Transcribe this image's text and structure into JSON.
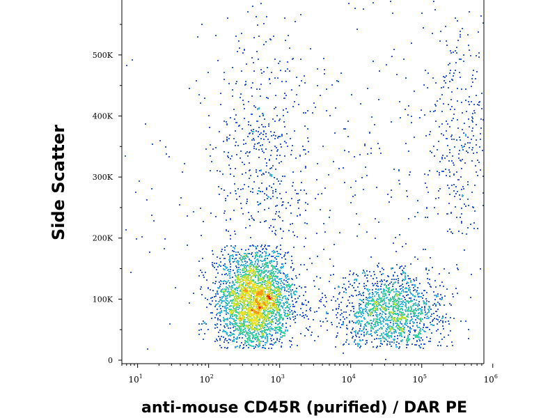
{
  "chart_data": {
    "type": "scatter",
    "subtype": "flow-cytometry-density-dot-plot",
    "xlabel": "anti-mouse CD45R (purified) / DAR PE",
    "ylabel": "Side Scatter",
    "x_scale": "log",
    "x_ticks": [
      {
        "base": "10",
        "exp": "1"
      },
      {
        "base": "10",
        "exp": "2"
      },
      {
        "base": "10",
        "exp": "3"
      },
      {
        "base": "10",
        "exp": "4"
      },
      {
        "base": "10",
        "exp": "5"
      },
      {
        "base": "10",
        "exp": "6"
      }
    ],
    "y_ticks": [
      "0",
      "100K",
      "200K",
      "300K",
      "400K",
      "500K"
    ],
    "y_tick_values": [
      0,
      100000,
      200000,
      300000,
      400000,
      500000
    ],
    "xlim": [
      6,
      750000
    ],
    "ylim": [
      0,
      590000
    ],
    "grid": false,
    "density_colormap": [
      "#1a1aa6",
      "#2a5adc",
      "#33b6e0",
      "#3ad29a",
      "#b9e03a",
      "#f2e12a",
      "#f59a1c",
      "#e0251e"
    ],
    "populations": [
      {
        "x_center": 430,
        "y_center": 100000,
        "x_spread_decades": 0.28,
        "y_range": [
          20000,
          190000
        ],
        "relative_count": 0.52
      },
      {
        "x_center": 35000,
        "y_center": 80000,
        "x_spread_decades": 0.38,
        "y_range": [
          20000,
          160000
        ],
        "relative_count": 0.27
      },
      {
        "x_center": 600,
        "y_center": 330000,
        "x_spread_decades": 0.35,
        "y_range": [
          200000,
          590000
        ],
        "relative_count": 0.08
      },
      {
        "x_center": 300000,
        "y_center": 380000,
        "x_spread_decades": 0.3,
        "y_range": [
          200000,
          590000
        ],
        "relative_count": 0.06
      },
      {
        "x_center": 5000,
        "y_center": 300000,
        "x_spread_decades": 1.5,
        "y_range": [
          0,
          590000
        ],
        "relative_count": 0.07
      }
    ]
  }
}
